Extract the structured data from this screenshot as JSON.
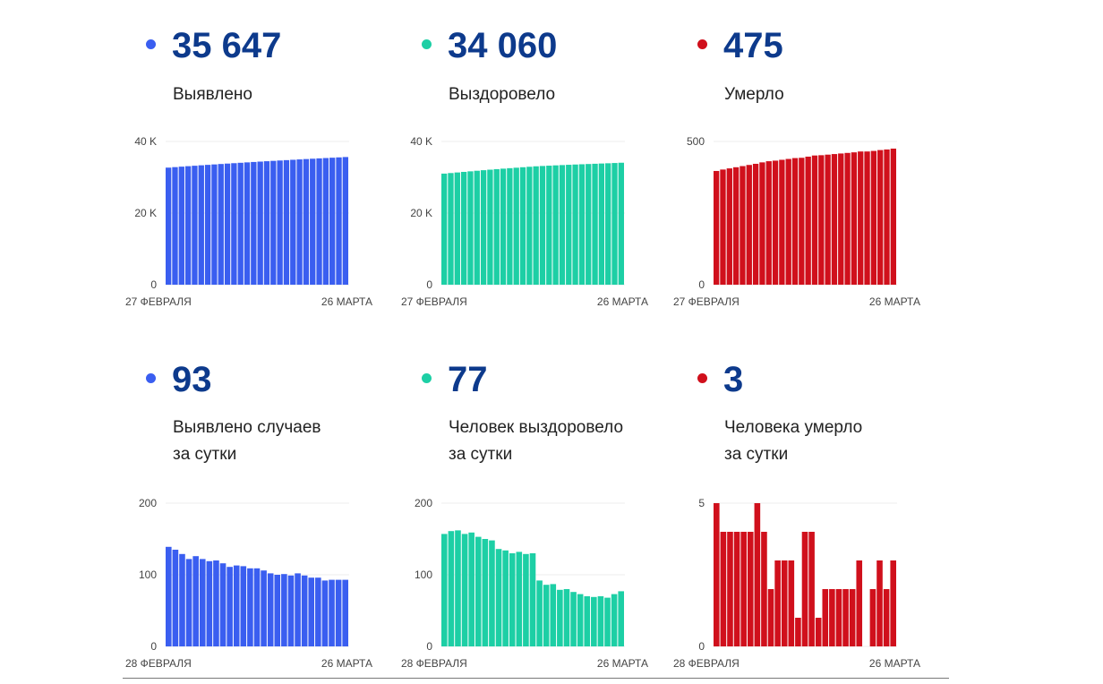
{
  "colors": {
    "blue": "#3a5ef0",
    "green": "#1dcfa5",
    "red": "#d0101c",
    "number": "#0d3a8c"
  },
  "stats": [
    {
      "value": "35 647",
      "label": "Выявлено",
      "color": "#3a5ef0"
    },
    {
      "value": "34 060",
      "label": "Выздоровело",
      "color": "#1dcfa5"
    },
    {
      "value": "475",
      "label": "Умерло",
      "color": "#d0101c"
    },
    {
      "value": "93",
      "label_line1": "Выявлено случаев",
      "label_line2": "за сутки",
      "color": "#3a5ef0"
    },
    {
      "value": "77",
      "label_line1": "Человек выздоровело",
      "label_line2": "за сутки",
      "color": "#1dcfa5"
    },
    {
      "value": "3",
      "label_line1": "Человека умерло",
      "label_line2": "за сутки",
      "color": "#d0101c"
    }
  ],
  "chart_data": [
    {
      "type": "bar",
      "x_start_label": "27 ФЕВРАЛЯ",
      "x_end_label": "26 МАРТА",
      "ylim": [
        0,
        40000
      ],
      "yticks": [
        0,
        20000,
        40000
      ],
      "ytick_labels": [
        "0",
        "20 K",
        "40 K"
      ],
      "color": "#3a5ef0",
      "grid": true,
      "values": [
        32693,
        32832,
        32967,
        33096,
        33218,
        33344,
        33466,
        33585,
        33705,
        33821,
        33932,
        34045,
        34157,
        34266,
        34375,
        34481,
        34583,
        34683,
        34784,
        34883,
        34985,
        35084,
        35180,
        35276,
        35368,
        35461,
        35554,
        35647
      ]
    },
    {
      "type": "bar",
      "x_start_label": "27 ФЕВРАЛЯ",
      "x_end_label": "26 МАРТА",
      "ylim": [
        0,
        40000
      ],
      "yticks": [
        0,
        20000,
        40000
      ],
      "ytick_labels": [
        "0",
        "20 K",
        "40 K"
      ],
      "color": "#1dcfa5",
      "grid": true,
      "values": [
        31022,
        31179,
        31340,
        31502,
        31659,
        31818,
        31971,
        32121,
        32269,
        32405,
        32539,
        32669,
        32801,
        32930,
        33060,
        33152,
        33238,
        33325,
        33404,
        33484,
        33560,
        33633,
        33703,
        33772,
        33842,
        33910,
        33983,
        34060
      ]
    },
    {
      "type": "bar",
      "x_start_label": "27 ФЕВРАЛЯ",
      "x_end_label": "26 МАРТА",
      "ylim": [
        0,
        500
      ],
      "yticks": [
        0,
        500
      ],
      "ytick_labels": [
        "0",
        "500"
      ],
      "color": "#d0101c",
      "grid": true,
      "values": [
        397,
        402,
        406,
        410,
        414,
        418,
        422,
        427,
        431,
        433,
        436,
        439,
        442,
        443,
        447,
        451,
        452,
        454,
        456,
        458,
        460,
        462,
        465,
        465,
        467,
        470,
        472,
        475
      ]
    },
    {
      "type": "bar",
      "x_start_label": "28 ФЕВРАЛЯ",
      "x_end_label": "26 МАРТА",
      "ylim": [
        0,
        200
      ],
      "yticks": [
        0,
        100,
        200
      ],
      "ytick_labels": [
        "0",
        "100",
        "200"
      ],
      "color": "#3a5ef0",
      "grid": true,
      "values": [
        139,
        135,
        129,
        122,
        126,
        122,
        119,
        120,
        116,
        111,
        113,
        112,
        109,
        109,
        106,
        102,
        100,
        101,
        99,
        102,
        99,
        96,
        96,
        92,
        93,
        93,
        93
      ]
    },
    {
      "type": "bar",
      "x_start_label": "28 ФЕВРАЛЯ",
      "x_end_label": "26 МАРТА",
      "ylim": [
        0,
        200
      ],
      "yticks": [
        0,
        100,
        200
      ],
      "ytick_labels": [
        "0",
        "100",
        "200"
      ],
      "color": "#1dcfa5",
      "grid": true,
      "values": [
        157,
        161,
        162,
        157,
        159,
        153,
        150,
        148,
        136,
        134,
        130,
        132,
        129,
        130,
        92,
        86,
        87,
        79,
        80,
        76,
        73,
        70,
        69,
        70,
        68,
        73,
        77
      ]
    },
    {
      "type": "bar",
      "x_start_label": "28 ФЕВРАЛЯ",
      "x_end_label": "26 МАРТА",
      "ylim": [
        0,
        5
      ],
      "yticks": [
        0,
        5
      ],
      "ytick_labels": [
        "0",
        "5"
      ],
      "color": "#d0101c",
      "grid": true,
      "values": [
        5,
        4,
        4,
        4,
        4,
        4,
        5,
        4,
        2,
        3,
        3,
        3,
        1,
        4,
        4,
        1,
        2,
        2,
        2,
        2,
        2,
        3,
        0,
        2,
        3,
        2,
        3
      ]
    }
  ]
}
